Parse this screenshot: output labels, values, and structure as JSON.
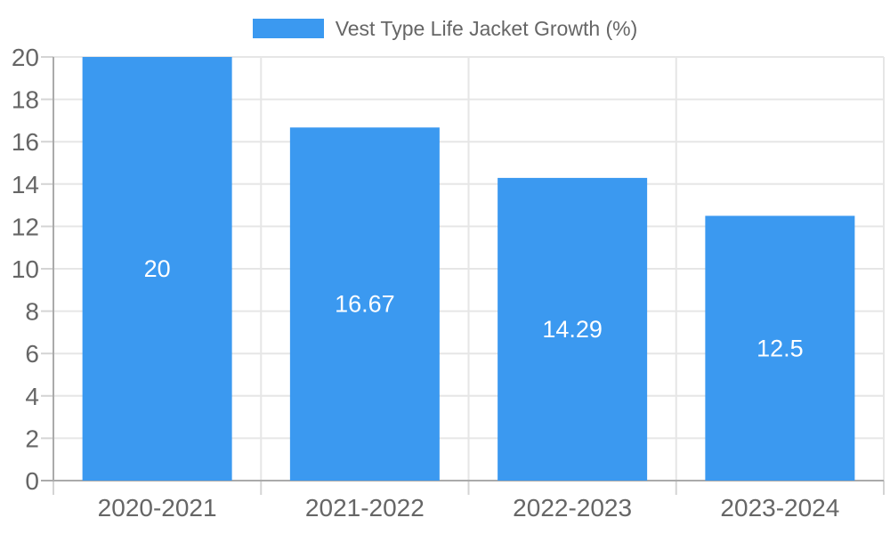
{
  "chart_data": {
    "type": "bar",
    "legend": {
      "label": "Vest Type Life Jacket Growth (%)",
      "position": "top"
    },
    "categories": [
      "2020-2021",
      "2021-2022",
      "2022-2023",
      "2023-2024"
    ],
    "values": [
      20,
      16.67,
      14.29,
      12.5
    ],
    "value_labels": [
      "20",
      "16.67",
      "14.29",
      "12.5"
    ],
    "ylim": [
      0,
      20
    ],
    "ytick_step": 2,
    "ytick_labels": [
      "0",
      "2",
      "4",
      "6",
      "8",
      "10",
      "12",
      "14",
      "16",
      "18",
      "20"
    ],
    "grid": true,
    "colors": {
      "bar": "#3b99f0",
      "value_text": "#ffffff",
      "axis_text": "#666666",
      "legend_text": "#666666",
      "axis_line": "#aaaaaa",
      "gridline": "#e6e6e6",
      "tick": "#d4d4d4",
      "background": "#ffffff"
    }
  }
}
